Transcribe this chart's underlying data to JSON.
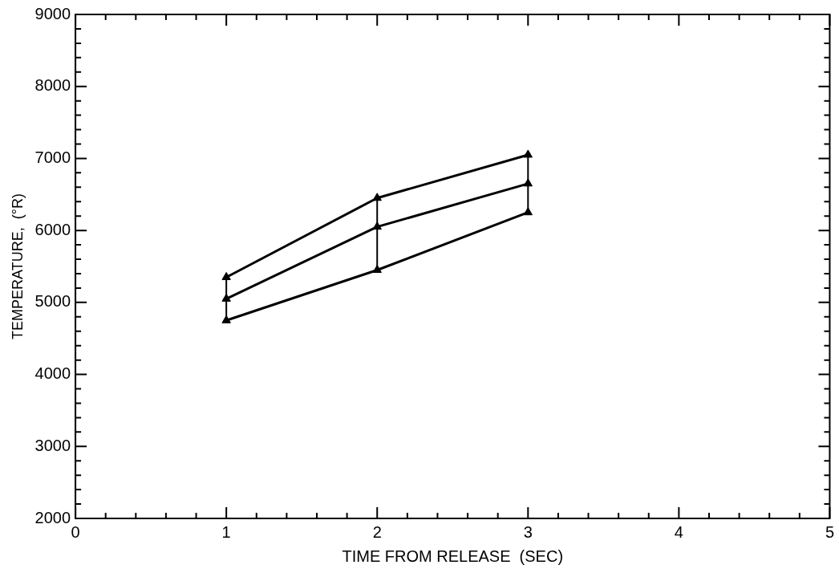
{
  "chart_data": {
    "type": "line",
    "xlabel": "TIME FROM RELEASE  (SEC)",
    "ylabel": "TEMPERATURE,  (°R)",
    "x": [
      1,
      2,
      3
    ],
    "series": [
      {
        "color": "#000000",
        "values": [
          5350,
          6450,
          7050
        ]
      },
      {
        "color": "#000000",
        "values": [
          5050,
          6050,
          6650
        ],
        "errors": [
          [
            4750,
            5350
          ],
          [
            5450,
            6450
          ],
          [
            6250,
            7050
          ]
        ]
      },
      {
        "color": "#000000",
        "values": [
          4750,
          5450,
          6250
        ]
      }
    ],
    "marker": "triangle",
    "line_style": "solid",
    "grid": false,
    "legend": false,
    "xlim": [
      0,
      5
    ],
    "xticks": [
      0,
      {
        "value": 0.2,
        "label": null
      },
      {
        "value": 0.4,
        "label": null
      },
      {
        "value": 0.6,
        "label": null
      },
      {
        "value": 0.8,
        "label": null
      },
      1,
      {
        "value": 1.2,
        "label": null
      },
      {
        "value": 1.4,
        "label": null
      },
      {
        "value": 1.6,
        "label": null
      },
      {
        "value": 1.8,
        "label": null
      },
      2,
      {
        "value": 2.2,
        "label": null
      },
      {
        "value": 2.4,
        "label": null
      },
      {
        "value": 2.6,
        "label": null
      },
      {
        "value": 2.8,
        "label": null
      },
      3,
      {
        "value": 3.2,
        "label": null
      },
      {
        "value": 3.4,
        "label": null
      },
      {
        "value": 3.6,
        "label": null
      },
      {
        "value": 3.8,
        "label": null
      },
      4,
      {
        "value": 4.2,
        "label": null
      },
      {
        "value": 4.4,
        "label": null
      },
      {
        "value": 4.6,
        "label": null
      },
      {
        "value": 4.8,
        "label": null
      },
      5
    ],
    "ylim": [
      2000,
      9000
    ],
    "yticks": [
      2000,
      {
        "value": 2200,
        "label": null
      },
      {
        "value": 2400,
        "label": null
      },
      {
        "value": 2600,
        "label": null
      },
      {
        "value": 2800,
        "label": null
      },
      3000,
      {
        "value": 3200,
        "label": null
      },
      {
        "value": 3400,
        "label": null
      },
      {
        "value": 3600,
        "label": null
      },
      {
        "value": 3800,
        "label": null
      },
      4000,
      {
        "value": 4200,
        "label": null
      },
      {
        "value": 4400,
        "label": null
      },
      {
        "value": 4600,
        "label": null
      },
      {
        "value": 4800,
        "label": null
      },
      5000,
      {
        "value": 5200,
        "label": null
      },
      {
        "value": 5400,
        "label": null
      },
      {
        "value": 5600,
        "label": null
      },
      {
        "value": 5800,
        "label": null
      },
      6000,
      {
        "value": 6200,
        "label": null
      },
      {
        "value": 6400,
        "label": null
      },
      {
        "value": 6600,
        "label": null
      },
      {
        "value": 6800,
        "label": null
      },
      7000,
      {
        "value": 7200,
        "label": null
      },
      {
        "value": 7400,
        "label": null
      },
      {
        "value": 7600,
        "label": null
      },
      {
        "value": 7800,
        "label": null
      },
      8000,
      {
        "value": 8200,
        "label": null
      },
      {
        "value": 8400,
        "label": null
      },
      {
        "value": 8600,
        "label": null
      },
      {
        "value": 8800,
        "label": null
      },
      9000
    ]
  }
}
